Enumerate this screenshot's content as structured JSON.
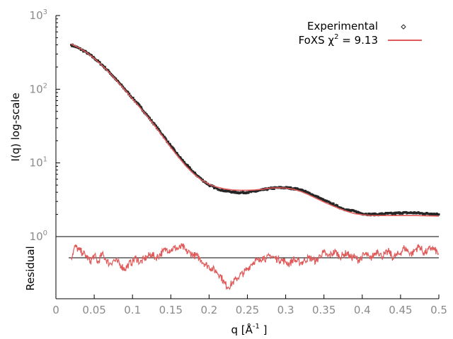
{
  "chart_data": {
    "type": "line",
    "xlabel_main": "q [Å",
    "xlabel_sup": "-1",
    "xlabel_end": " ]",
    "xlim": [
      0,
      0.5
    ],
    "x_ticks": [
      "0",
      "0.05",
      "0.1",
      "0.15",
      "0.2",
      "0.25",
      "0.3",
      "0.35",
      "0.4",
      "0.45",
      "0.5"
    ],
    "x_tick_values": [
      0,
      0.05,
      0.1,
      0.15,
      0.2,
      0.25,
      0.3,
      0.35,
      0.4,
      0.45,
      0.5
    ],
    "grid": false,
    "legend_position": "top-right",
    "panels": {
      "top": {
        "ylabel": "I(q) log-scale",
        "yscale": "log",
        "ylim": [
          1,
          1000
        ],
        "y_ticks": [
          {
            "base": "10",
            "exp": "0",
            "value": 1
          },
          {
            "base": "10",
            "exp": "1",
            "value": 10
          },
          {
            "base": "10",
            "exp": "2",
            "value": 100
          },
          {
            "base": "10",
            "exp": "3",
            "value": 1000
          }
        ]
      },
      "bottom": {
        "ylabel": "Residual",
        "zero_line": 0
      }
    },
    "legend": {
      "experimental": "Experimental",
      "fit_prefix": "FoXS χ",
      "fit_sup": "2",
      "fit_suffix": " = 9.13"
    },
    "colors": {
      "experimental": "#262626",
      "fit": "#e05a5a",
      "residual": "#e05a5a",
      "axis": "#000000",
      "tick_label": "#8a8a8a"
    },
    "series": [
      {
        "name": "Experimental",
        "style": "points",
        "x": [
          0.02,
          0.03,
          0.04,
          0.05,
          0.06,
          0.07,
          0.08,
          0.09,
          0.1,
          0.11,
          0.12,
          0.13,
          0.14,
          0.15,
          0.16,
          0.17,
          0.18,
          0.19,
          0.2,
          0.21,
          0.22,
          0.23,
          0.24,
          0.25,
          0.26,
          0.27,
          0.28,
          0.29,
          0.3,
          0.31,
          0.32,
          0.33,
          0.34,
          0.35,
          0.36,
          0.37,
          0.38,
          0.39,
          0.4,
          0.41,
          0.42,
          0.43,
          0.44,
          0.45,
          0.46,
          0.47,
          0.48,
          0.49,
          0.5
        ],
        "y": [
          400,
          360,
          315,
          265,
          215,
          170,
          130,
          100,
          76,
          58,
          43,
          32,
          23.5,
          17,
          12.5,
          9.5,
          7.4,
          6.0,
          5.0,
          4.5,
          4.2,
          4.05,
          3.95,
          4.0,
          4.1,
          4.3,
          4.5,
          4.6,
          4.6,
          4.5,
          4.3,
          3.9,
          3.5,
          3.1,
          2.8,
          2.5,
          2.3,
          2.2,
          2.05,
          2.0,
          2.0,
          2.05,
          2.05,
          2.1,
          2.1,
          2.1,
          2.05,
          2.05,
          2.0
        ]
      },
      {
        "name": "FoXS χ2 = 9.13",
        "style": "line",
        "x": [
          0.02,
          0.03,
          0.04,
          0.05,
          0.06,
          0.07,
          0.08,
          0.09,
          0.1,
          0.11,
          0.12,
          0.13,
          0.14,
          0.15,
          0.16,
          0.17,
          0.18,
          0.19,
          0.2,
          0.21,
          0.22,
          0.23,
          0.24,
          0.25,
          0.26,
          0.27,
          0.28,
          0.29,
          0.3,
          0.31,
          0.32,
          0.33,
          0.34,
          0.35,
          0.36,
          0.37,
          0.38,
          0.39,
          0.4,
          0.41,
          0.42,
          0.43,
          0.44,
          0.45,
          0.46,
          0.47,
          0.48,
          0.49,
          0.5
        ],
        "y": [
          410,
          365,
          315,
          262,
          212,
          167,
          128,
          98,
          74,
          56,
          42,
          31,
          22.5,
          16.2,
          12.0,
          9.0,
          7.1,
          5.9,
          5.1,
          4.7,
          4.45,
          4.3,
          4.25,
          4.25,
          4.3,
          4.4,
          4.55,
          4.6,
          4.55,
          4.4,
          4.1,
          3.7,
          3.3,
          2.95,
          2.65,
          2.4,
          2.2,
          2.05,
          1.98,
          1.94,
          1.93,
          1.93,
          1.93,
          1.93,
          1.93,
          1.93,
          1.92,
          1.91,
          1.9
        ]
      },
      {
        "name": "Residual",
        "style": "line",
        "x": [
          0.02,
          0.025,
          0.03,
          0.035,
          0.04,
          0.045,
          0.05,
          0.055,
          0.06,
          0.065,
          0.07,
          0.075,
          0.08,
          0.085,
          0.09,
          0.095,
          0.1,
          0.105,
          0.11,
          0.115,
          0.12,
          0.125,
          0.13,
          0.135,
          0.14,
          0.145,
          0.15,
          0.155,
          0.16,
          0.165,
          0.17,
          0.175,
          0.18,
          0.185,
          0.19,
          0.195,
          0.2,
          0.205,
          0.21,
          0.215,
          0.22,
          0.225,
          0.23,
          0.235,
          0.24,
          0.245,
          0.25,
          0.255,
          0.26,
          0.265,
          0.27,
          0.275,
          0.28,
          0.285,
          0.29,
          0.295,
          0.3,
          0.305,
          0.31,
          0.315,
          0.32,
          0.325,
          0.33,
          0.335,
          0.34,
          0.345,
          0.35,
          0.355,
          0.36,
          0.365,
          0.37,
          0.375,
          0.38,
          0.385,
          0.39,
          0.395,
          0.4,
          0.405,
          0.41,
          0.415,
          0.42,
          0.425,
          0.43,
          0.435,
          0.44,
          0.445,
          0.45,
          0.455,
          0.46,
          0.465,
          0.47,
          0.475,
          0.48,
          0.485,
          0.49,
          0.495,
          0.5
        ],
        "y": [
          0.0,
          0.9,
          0.6,
          0.4,
          0.1,
          -0.3,
          0.2,
          -0.4,
          0.3,
          -0.1,
          -0.5,
          -0.2,
          -0.3,
          -0.6,
          -0.9,
          -0.5,
          -0.3,
          0.0,
          -0.4,
          -0.1,
          0.1,
          0.3,
          0.0,
          0.2,
          0.5,
          0.7,
          0.6,
          0.8,
          0.7,
          0.9,
          0.5,
          0.4,
          0.2,
          0.1,
          -0.2,
          -0.5,
          -0.7,
          -0.9,
          -1.1,
          -1.4,
          -2.0,
          -2.3,
          -2.0,
          -1.7,
          -1.4,
          -1.2,
          -0.9,
          -0.5,
          -0.2,
          -0.3,
          0.1,
          -0.1,
          0.2,
          0.0,
          -0.1,
          -0.2,
          -0.3,
          -0.5,
          -0.1,
          -0.3,
          -0.4,
          -0.2,
          0.0,
          -0.1,
          -0.3,
          0.2,
          0.4,
          0.1,
          0.3,
          0.5,
          0.1,
          0.2,
          0.4,
          0.0,
          0.1,
          -0.2,
          0.1,
          0.3,
          -0.1,
          0.2,
          0.6,
          0.1,
          0.3,
          0.5,
          0.0,
          0.2,
          0.4,
          0.8,
          0.5,
          0.3,
          0.7,
          0.9,
          0.4,
          0.5,
          0.8,
          0.6,
          0.3
        ]
      }
    ]
  }
}
